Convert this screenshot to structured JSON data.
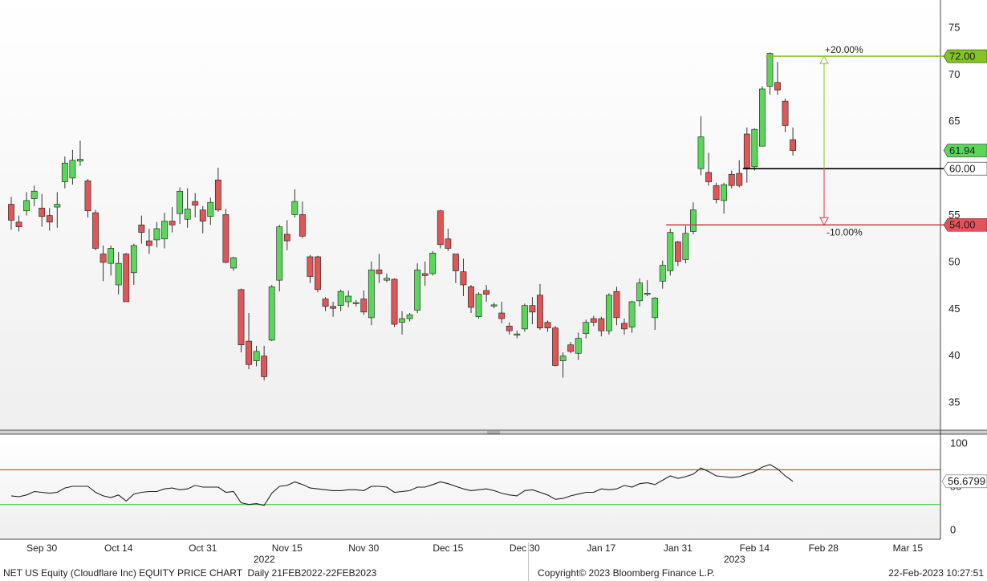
{
  "chart_data": [
    {
      "type": "candlestick",
      "categories": [
        "2022-09-26",
        "2022-09-27",
        "2022-09-28",
        "2022-09-29",
        "2022-09-30",
        "2022-10-03",
        "2022-10-04",
        "2022-10-05",
        "2022-10-06",
        "2022-10-07",
        "2022-10-10",
        "2022-10-11",
        "2022-10-12",
        "2022-10-13",
        "2022-10-14",
        "2022-10-17",
        "2022-10-18",
        "2022-10-19",
        "2022-10-20",
        "2022-10-21",
        "2022-10-24",
        "2022-10-25",
        "2022-10-26",
        "2022-10-27",
        "2022-10-28",
        "2022-10-31",
        "2022-11-01",
        "2022-11-02",
        "2022-11-03",
        "2022-11-04",
        "2022-11-07",
        "2022-11-08",
        "2022-11-09",
        "2022-11-10",
        "2022-11-11",
        "2022-11-14",
        "2022-11-15",
        "2022-11-16",
        "2022-11-17",
        "2022-11-18",
        "2022-11-21",
        "2022-11-22",
        "2022-11-23",
        "2022-11-25",
        "2022-11-28",
        "2022-11-29",
        "2022-11-30",
        "2022-12-01",
        "2022-12-02",
        "2022-12-05",
        "2022-12-06",
        "2022-12-07",
        "2022-12-08",
        "2022-12-09",
        "2022-12-12",
        "2022-12-13",
        "2022-12-14",
        "2022-12-15",
        "2022-12-16",
        "2022-12-19",
        "2022-12-20",
        "2022-12-21",
        "2022-12-22",
        "2022-12-23",
        "2022-12-27",
        "2022-12-28",
        "2022-12-29",
        "2022-12-30",
        "2023-01-03",
        "2023-01-04",
        "2023-01-05",
        "2023-01-06",
        "2023-01-09",
        "2023-01-10",
        "2023-01-11",
        "2023-01-12",
        "2023-01-13",
        "2023-01-17",
        "2023-01-18",
        "2023-01-19",
        "2023-01-20",
        "2023-01-23",
        "2023-01-24",
        "2023-01-25",
        "2023-01-26",
        "2023-01-27",
        "2023-01-30",
        "2023-01-31",
        "2023-02-01",
        "2023-02-02",
        "2023-02-03",
        "2023-02-06",
        "2023-02-07",
        "2023-02-08",
        "2023-02-09",
        "2023-02-10",
        "2023-02-13",
        "2023-02-14",
        "2023-02-15",
        "2023-02-16",
        "2023-02-17",
        "2023-02-21",
        "2023-02-22"
      ],
      "open": [
        56.2,
        54.3,
        55.5,
        56.8,
        55.8,
        55.0,
        55.9,
        58.6,
        59.0,
        60.8,
        58.7,
        55.3,
        50.9,
        49.9,
        47.6,
        50.9,
        48.9,
        54.0,
        52.3,
        52.4,
        52.5,
        54.4,
        55.2,
        54.6,
        56.5,
        55.6,
        54.9,
        58.8,
        55.1,
        49.4,
        47.1,
        41.6,
        39.5,
        40.0,
        41.7,
        48.1,
        53.0,
        55.1,
        55.1,
        50.6,
        50.6,
        46.1,
        45.3,
        45.4,
        45.8,
        45.6,
        46.1,
        44.1,
        49.2,
        48.1,
        48.2,
        43.6,
        44.0,
        44.9,
        48.8,
        48.8,
        55.5,
        52.5,
        50.9,
        49.0,
        47.4,
        44.2,
        47.0,
        45.4,
        44.6,
        43.2,
        42.3,
        42.9,
        45.4,
        46.5,
        43.6,
        43.0,
        39.5,
        41.2,
        40.3,
        42.4,
        44.0,
        44.0,
        42.7,
        46.9,
        43.5,
        43.1,
        45.9,
        46.6,
        44.1,
        48.0,
        49.1,
        52.2,
        50.3,
        53.3,
        60.0,
        59.6,
        58.2,
        56.6,
        59.4,
        59.5,
        63.7,
        60.2,
        62.4,
        68.8,
        69.2,
        67.2,
        63.1
      ],
      "high": [
        57.0,
        55.0,
        57.5,
        58.2,
        57.3,
        55.8,
        57.5,
        61.3,
        62.0,
        63.0,
        58.9,
        55.6,
        51.8,
        51.8,
        51.1,
        51.0,
        52.0,
        55.0,
        53.6,
        54.3,
        55.3,
        55.9,
        58.0,
        57.9,
        57.4,
        56.0,
        56.9,
        60.1,
        55.7,
        50.6,
        47.2,
        44.6,
        41.1,
        41.1,
        47.6,
        54.0,
        54.5,
        57.8,
        56.5,
        50.8,
        50.7,
        46.3,
        45.8,
        47.1,
        47.0,
        46.0,
        47.0,
        50.1,
        50.9,
        48.8,
        48.3,
        44.8,
        44.6,
        49.9,
        50.1,
        51.2,
        55.6,
        53.6,
        50.9,
        50.4,
        47.6,
        46.8,
        47.6,
        45.7,
        45.8,
        43.6,
        42.7,
        45.6,
        46.3,
        47.7,
        43.8,
        43.2,
        40.4,
        41.5,
        42.5,
        43.9,
        44.3,
        44.2,
        46.7,
        47.4,
        44.0,
        45.9,
        48.3,
        48.1,
        46.3,
        50.2,
        53.6,
        52.3,
        53.9,
        56.4,
        65.6,
        61.7,
        58.5,
        58.5,
        59.8,
        60.9,
        64.4,
        64.3,
        68.8,
        72.4,
        71.4,
        67.5,
        64.4
      ],
      "low": [
        53.5,
        53.3,
        55.0,
        56.0,
        53.8,
        53.4,
        53.7,
        57.9,
        58.3,
        60.3,
        54.8,
        51.3,
        48.0,
        48.6,
        46.6,
        45.8,
        47.6,
        52.0,
        50.9,
        51.6,
        51.5,
        53.2,
        54.1,
        53.7,
        54.8,
        53.1,
        54.0,
        55.4,
        49.9,
        49.1,
        40.4,
        38.6,
        38.9,
        37.4,
        41.6,
        46.9,
        51.3,
        54.8,
        52.6,
        47.8,
        46.8,
        44.8,
        44.2,
        44.8,
        45.2,
        45.3,
        44.4,
        43.3,
        47.8,
        47.9,
        43.1,
        42.3,
        43.7,
        44.6,
        47.5,
        48.6,
        51.5,
        51.2,
        47.8,
        46.4,
        44.6,
        44.0,
        45.8,
        45.1,
        43.5,
        42.3,
        41.9,
        42.6,
        43.4,
        42.8,
        42.6,
        38.9,
        37.7,
        40.3,
        39.6,
        41.9,
        43.2,
        42.1,
        42.3,
        43.3,
        42.3,
        42.5,
        45.3,
        46.4,
        42.8,
        47.2,
        48.6,
        49.6,
        49.9,
        53.0,
        59.3,
        58.2,
        56.3,
        55.2,
        57.9,
        58.0,
        58.5,
        59.8,
        62.4,
        67.9,
        67.9,
        63.9,
        61.4
      ],
      "close": [
        54.5,
        53.8,
        56.6,
        57.6,
        54.9,
        54.3,
        56.2,
        60.6,
        60.9,
        61.0,
        55.5,
        51.5,
        50.0,
        51.5,
        49.9,
        45.8,
        51.8,
        53.2,
        51.8,
        53.6,
        54.4,
        54.0,
        57.6,
        55.7,
        56.1,
        54.4,
        56.4,
        55.6,
        50.0,
        50.5,
        41.2,
        39.1,
        40.5,
        37.8,
        47.4,
        53.8,
        52.3,
        56.5,
        52.8,
        48.5,
        47.1,
        45.3,
        45.1,
        46.9,
        46.4,
        45.7,
        44.7,
        49.2,
        48.8,
        48.3,
        43.4,
        44.0,
        44.4,
        49.2,
        48.6,
        51.0,
        51.9,
        51.5,
        49.1,
        47.6,
        45.2,
        46.6,
        46.6,
        45.4,
        44.0,
        42.7,
        42.3,
        45.4,
        44.7,
        43.0,
        43.0,
        39.0,
        40.0,
        40.5,
        41.9,
        43.6,
        43.6,
        42.7,
        46.5,
        44.1,
        42.9,
        45.8,
        47.8,
        46.7,
        46.2,
        49.7,
        53.2,
        50.1,
        53.1,
        55.6,
        63.4,
        58.6,
        56.7,
        58.3,
        58.2,
        58.2,
        60.1,
        64.2,
        68.5,
        72.3,
        68.4,
        64.6,
        61.94
      ],
      "up_color": "#5ad65a",
      "down_color": "#e05555",
      "last_label": "61.94",
      "last_fill": "#5ad65a",
      "ylim": [
        32.1,
        78.0
      ],
      "yticks": [
        35,
        40,
        45,
        50,
        55,
        60,
        65,
        70,
        75
      ],
      "grid": true,
      "xticks": [
        {
          "value": "2022-09-30",
          "label": "Sep 30"
        },
        {
          "value": "2022-10-14",
          "label": "Oct 14"
        },
        {
          "value": "2022-10-31",
          "label": "Oct 31"
        },
        {
          "value": "2022-11-15",
          "label": "Nov 15"
        },
        {
          "value": "2022-11-30",
          "label": "Nov 30"
        },
        {
          "value": "2022-12-15",
          "label": "Dec 15"
        },
        {
          "value": "2022-12-30",
          "label": "Dec 30"
        },
        {
          "value": "2023-01-17",
          "label": "Jan 17"
        },
        {
          "value": "2023-01-31",
          "label": "Jan 31"
        },
        {
          "value": "2023-02-14",
          "label": "Feb 14"
        },
        {
          "value": "2023-02-28",
          "label": "Feb 28"
        },
        {
          "value": "2023-03-15",
          "label": "Mar 15"
        }
      ],
      "years": [
        "2022",
        "2023"
      ],
      "levels": [
        {
          "value": 72,
          "label": "72.00",
          "color": "#84c51f",
          "label_fill": "#84c51f",
          "from": "2023-02-16"
        },
        {
          "value": 60,
          "label": "60.00",
          "color": "#000000",
          "label_fill": "#ffffff",
          "from": "2023-02-13"
        },
        {
          "value": 54,
          "label": "54.00",
          "color": "#e8334a",
          "label_fill": "#e8505a",
          "from": "2023-01-30"
        }
      ],
      "annotations": [
        {
          "text": "+20.00%",
          "color": "#84c51f"
        },
        {
          "text": "-10.00%",
          "color": "#e8334a"
        }
      ]
    },
    {
      "type": "line",
      "values": [
        40,
        39,
        41,
        45,
        44,
        43,
        44,
        49,
        51,
        51,
        51,
        44,
        40,
        38,
        41,
        34,
        42,
        44,
        45,
        45,
        48,
        49,
        47,
        48,
        52,
        50,
        50,
        50,
        44,
        45,
        32,
        30,
        31,
        29,
        43,
        51,
        52,
        56,
        53,
        49,
        48,
        47,
        46,
        46,
        47,
        47,
        46,
        51,
        51,
        50,
        44,
        45,
        46,
        50,
        50,
        53,
        56,
        54,
        51,
        48,
        46,
        47,
        48,
        46,
        43,
        41,
        40,
        46,
        47,
        44,
        41,
        36,
        37,
        40,
        42,
        44,
        44,
        48,
        47,
        48,
        52,
        50,
        54,
        55,
        53,
        58,
        63,
        60,
        62,
        65,
        72,
        68,
        63,
        62,
        61,
        62,
        65,
        68,
        73,
        76,
        71,
        63,
        56.6799
      ],
      "color": "#222222",
      "last_label": "56.6799",
      "ylim": [
        -10,
        111
      ],
      "yticks": [
        0,
        50,
        100
      ],
      "reference_lines": [
        {
          "value": 70,
          "color": "#d62020"
        },
        {
          "value": 30,
          "color": "#28c828"
        }
      ]
    }
  ],
  "footer": {
    "left": "NET US Equity (Cloudflare Inc) EQUITY PRICE CHART  Daily 21FEB2022-22FEB2023",
    "center": "Copyright© 2023 Bloomberg Finance L.P.",
    "right": "22-Feb-2023 10:27:51"
  }
}
